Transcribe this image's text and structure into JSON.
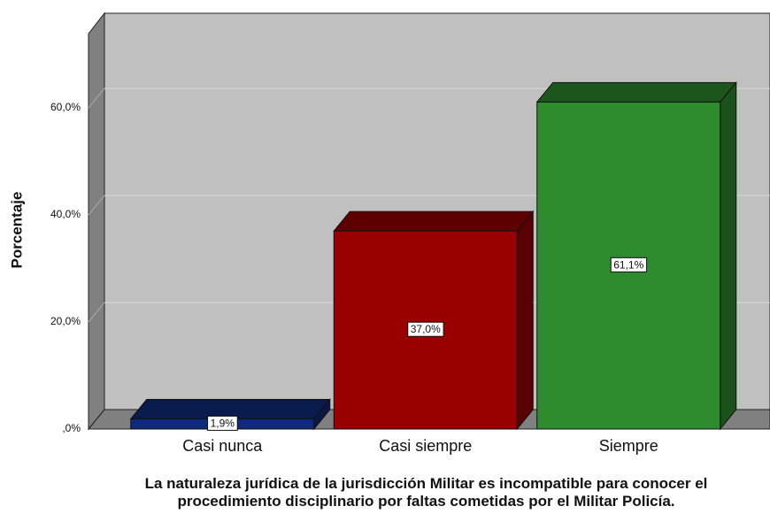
{
  "chart_data": {
    "type": "bar3d",
    "categories": [
      "Casi nunca",
      "Casi siempre",
      "Siempre"
    ],
    "values": [
      1.9,
      37.0,
      61.1
    ],
    "value_labels": [
      "1,9%",
      "37,0%",
      "61,1%"
    ],
    "colors": [
      "#0f2a7a",
      "#990000",
      "#2e8b2e"
    ],
    "ylim": [
      0,
      74
    ],
    "yticks": [
      {
        "value": 0,
        "label": ",0%"
      },
      {
        "value": 20,
        "label": "20,0%"
      },
      {
        "value": 40,
        "label": "40,0%"
      },
      {
        "value": 60,
        "label": "60,0%"
      }
    ],
    "ylabel": "Porcentaje",
    "xlabel": "La naturaleza jurídica de la jurisdicción Militar es incompatible para conocer el procedimiento disciplinario por faltas cometidas por el Militar Policía.",
    "grid": true
  }
}
